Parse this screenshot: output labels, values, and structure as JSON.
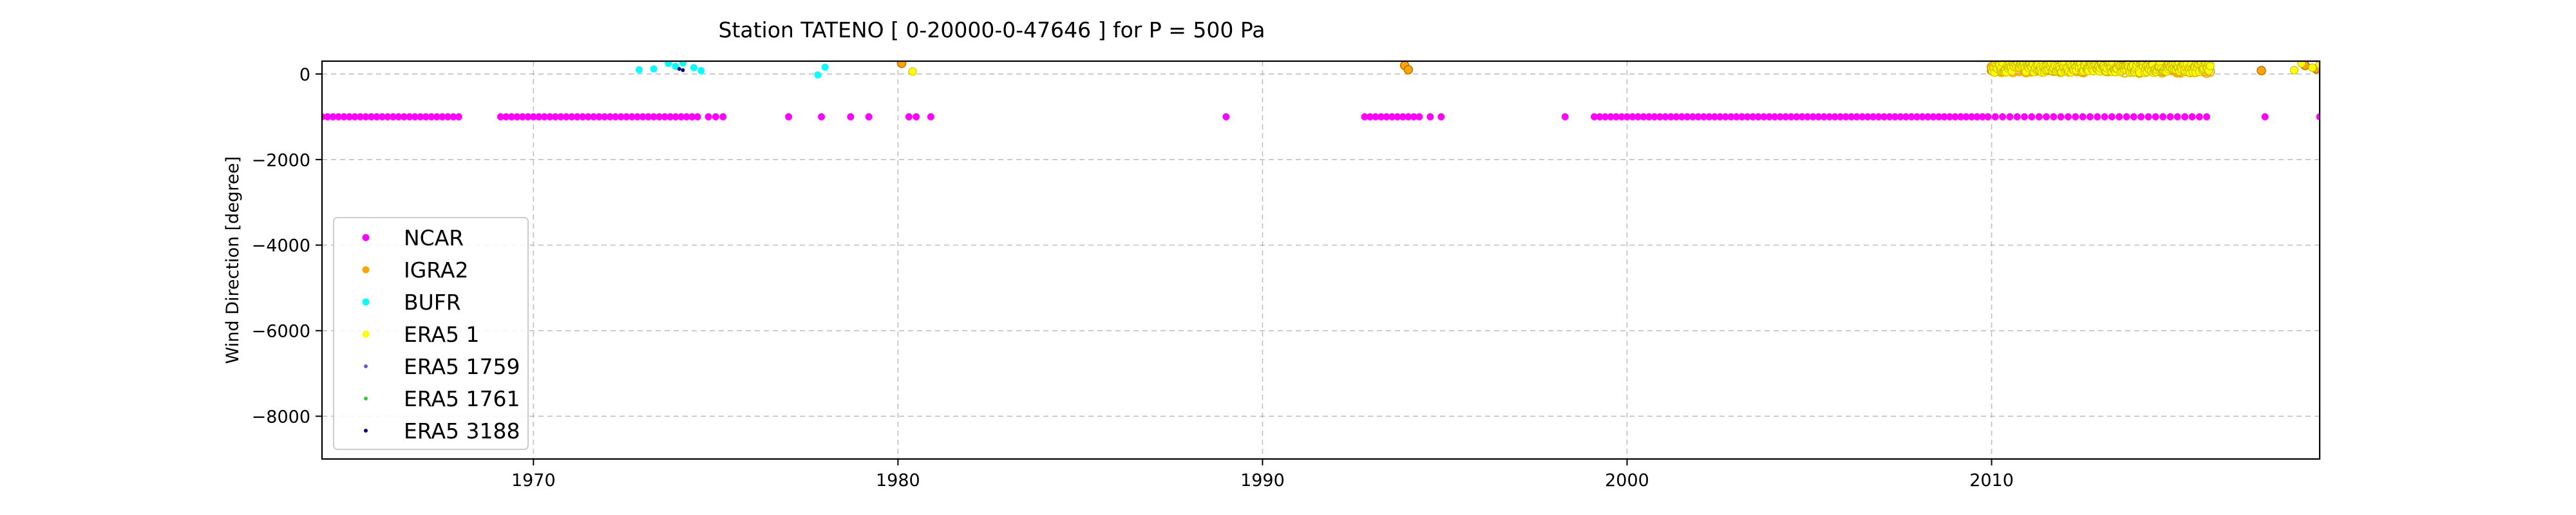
{
  "chart_data": {
    "type": "scatter",
    "title": "Station  TATENO [ 0-20000-0-47646 ]  for P = 500 Pa",
    "xlabel": "",
    "ylabel": "Wind Direction [degree]",
    "xlim": [
      1964.2,
      2019.0
    ],
    "ylim": [
      -9000,
      300
    ],
    "x_ticks": [
      1970,
      1980,
      1990,
      2000,
      2010
    ],
    "x_tick_labels": [
      "1970",
      "1980",
      "1990",
      "2000",
      "2010"
    ],
    "y_ticks": [
      0,
      -2000,
      -4000,
      -6000,
      -8000
    ],
    "y_tick_labels": [
      "0",
      "−2000",
      "−4000",
      "−6000",
      "−8000"
    ],
    "grid": true,
    "legend_position": "lower-left",
    "legend": [
      "NCAR",
      "IGRA2",
      "BUFR",
      "ERA5 1",
      "ERA5 1759",
      "ERA5 1761",
      "ERA5 3188"
    ],
    "series": [
      {
        "name": "NCAR",
        "color": "#ff00ff",
        "marker": "dot",
        "runs": [
          [
            1964.2,
            1968.0,
            0.15,
            -1000
          ],
          [
            1969.1,
            1974.5,
            0.15,
            -1000
          ],
          [
            1974.8,
            1975.2,
            0.2,
            -1000
          ],
          [
            1992.8,
            1994.3,
            0.15,
            -1000
          ],
          [
            1999.1,
            2009.9,
            0.15,
            -1000
          ],
          [
            2010.1,
            2016.0,
            0.2,
            -1000
          ]
        ],
        "points": [
          [
            1977.0,
            -1000
          ],
          [
            1977.9,
            -1000
          ],
          [
            1978.7,
            -1000
          ],
          [
            1979.2,
            -1000
          ],
          [
            1980.3,
            -1000
          ],
          [
            1980.5,
            -1000
          ],
          [
            1980.9,
            -1000
          ],
          [
            1989.0,
            -1000
          ],
          [
            1994.6,
            -1000
          ],
          [
            1994.9,
            -1000
          ],
          [
            1998.3,
            -1000
          ],
          [
            2017.5,
            -1000
          ],
          [
            2019.0,
            -1000
          ]
        ]
      },
      {
        "name": "IGRA2",
        "color": "#ffa500",
        "marker": "circle",
        "points": [
          [
            1980.1,
            250
          ],
          [
            1993.9,
            200
          ],
          [
            1994.0,
            100
          ],
          [
            2010.0,
            80
          ],
          [
            2010.6,
            230
          ],
          [
            2011.3,
            150
          ],
          [
            2012.1,
            260
          ],
          [
            2013.0,
            120
          ],
          [
            2013.8,
            200
          ],
          [
            2014.6,
            90
          ],
          [
            2015.4,
            240
          ],
          [
            2015.9,
            150
          ],
          [
            2017.4,
            80
          ],
          [
            2018.6,
            200
          ],
          [
            2018.9,
            120
          ]
        ]
      },
      {
        "name": "BUFR",
        "color": "#00ffff",
        "marker": "dot",
        "points": [
          [
            1972.9,
            100
          ],
          [
            1973.3,
            120
          ],
          [
            1973.7,
            250
          ],
          [
            1973.9,
            180
          ],
          [
            1974.1,
            260
          ],
          [
            1974.4,
            150
          ],
          [
            1974.6,
            80
          ],
          [
            1977.8,
            -20
          ],
          [
            1978.0,
            160
          ]
        ]
      },
      {
        "name": "ERA5 1",
        "color": "#ffff00",
        "marker": "dense",
        "band": {
          "x_start": 2010.0,
          "x_end": 2016.0,
          "y_low": 30,
          "y_high": 300
        },
        "points": [
          [
            1980.4,
            60
          ],
          [
            2018.3,
            90
          ],
          [
            2018.5,
            250
          ],
          [
            2018.8,
            150
          ],
          [
            2019.0,
            220
          ]
        ]
      },
      {
        "name": "ERA5 1759",
        "color": "#6a5acd",
        "marker": "small",
        "points": []
      },
      {
        "name": "ERA5 1761",
        "color": "#32cd32",
        "marker": "small",
        "points": []
      },
      {
        "name": "ERA5 3188",
        "color": "#000080",
        "marker": "small",
        "points": [
          [
            1974.0,
            120
          ],
          [
            1974.1,
            90
          ]
        ]
      }
    ]
  }
}
